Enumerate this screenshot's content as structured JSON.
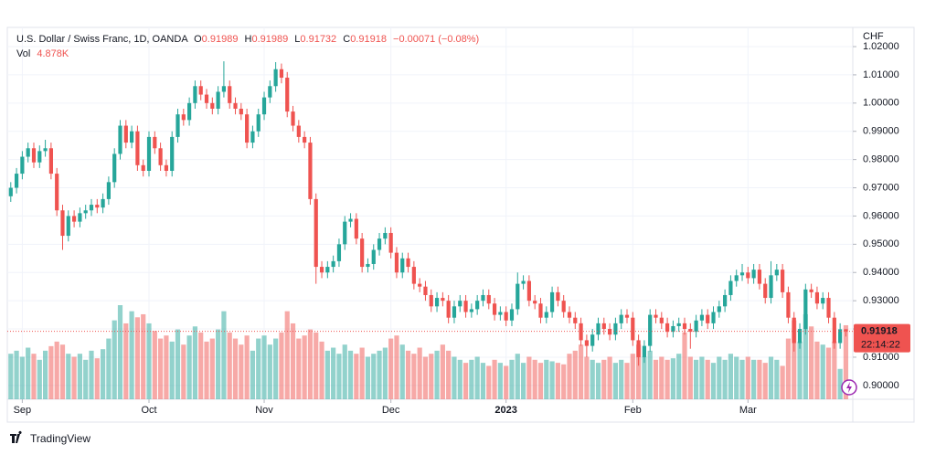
{
  "chart_data": {
    "type": "candlestick",
    "symbol": "U.S. Dollar / Swiss Franc, 1D, OANDA",
    "ohlc_keys": [
      "O",
      "H",
      "L",
      "C"
    ],
    "change": "−0.00071 (−0.08%)",
    "volume_title": "Vol",
    "volume_legend": "4.878K",
    "currency": "CHF",
    "countdown": "22:14:22",
    "brand": "TradingView",
    "up_color": "#26a69a",
    "down_color": "#ef5350",
    "grid": true,
    "ylim": [
      0.8951,
      1.0268
    ],
    "yticks": [
      {
        "value": 0.9,
        "label": "0.90000"
      },
      {
        "value": 0.91,
        "label": "0.91000"
      },
      {
        "value": 0.92,
        "label": "0.92000"
      },
      {
        "value": 0.93,
        "label": "0.93000"
      },
      {
        "value": 0.94,
        "label": "0.94000"
      },
      {
        "value": 0.95,
        "label": "0.95000"
      },
      {
        "value": 0.96,
        "label": "0.96000"
      },
      {
        "value": 0.97,
        "label": "0.97000"
      },
      {
        "value": 0.98,
        "label": "0.98000"
      },
      {
        "value": 0.99,
        "label": "0.99000"
      },
      {
        "value": 1.0,
        "label": "1.00000"
      },
      {
        "value": 1.01,
        "label": "1.01000"
      },
      {
        "value": 1.02,
        "label": "1.02000"
      }
    ],
    "xlim": [
      -0.6,
      146.2
    ],
    "xticks": [
      {
        "value": 2,
        "label": "Sep"
      },
      {
        "value": 24,
        "label": "Oct"
      },
      {
        "value": 44,
        "label": "Nov"
      },
      {
        "value": 66,
        "label": "Dec"
      },
      {
        "value": 86,
        "label": "2023",
        "bold": true
      },
      {
        "value": 108,
        "label": "Feb"
      },
      {
        "value": 128,
        "label": "Mar"
      }
    ],
    "volume_lim": [
      0,
      24.5
    ],
    "candles": [
      [
        0.967,
        0.972,
        0.965,
        0.97
      ],
      [
        0.97,
        0.977,
        0.968,
        0.975
      ],
      [
        0.975,
        0.983,
        0.973,
        0.981
      ],
      [
        0.981,
        0.986,
        0.979,
        0.984
      ],
      [
        0.984,
        0.986,
        0.977,
        0.979
      ],
      [
        0.979,
        0.985,
        0.977,
        0.983
      ],
      [
        0.983,
        0.987,
        0.981,
        0.984
      ],
      [
        0.984,
        0.986,
        0.973,
        0.975
      ],
      [
        0.975,
        0.977,
        0.96,
        0.962
      ],
      [
        0.962,
        0.964,
        0.948,
        0.953
      ],
      [
        0.953,
        0.962,
        0.951,
        0.96
      ],
      [
        0.96,
        0.962,
        0.956,
        0.958
      ],
      [
        0.958,
        0.963,
        0.956,
        0.961
      ],
      [
        0.961,
        0.964,
        0.959,
        0.962
      ],
      [
        0.962,
        0.966,
        0.96,
        0.964
      ],
      [
        0.964,
        0.966,
        0.961,
        0.963
      ],
      [
        0.963,
        0.968,
        0.961,
        0.966
      ],
      [
        0.966,
        0.974,
        0.964,
        0.972
      ],
      [
        0.972,
        0.984,
        0.97,
        0.982
      ],
      [
        0.982,
        0.994,
        0.98,
        0.992
      ],
      [
        0.992,
        0.994,
        0.984,
        0.986
      ],
      [
        0.986,
        0.992,
        0.984,
        0.99
      ],
      [
        0.99,
        0.992,
        0.976,
        0.978
      ],
      [
        0.978,
        0.98,
        0.974,
        0.976
      ],
      [
        0.976,
        0.99,
        0.974,
        0.988
      ],
      [
        0.988,
        0.99,
        0.982,
        0.984
      ],
      [
        0.984,
        0.986,
        0.976,
        0.978
      ],
      [
        0.978,
        0.98,
        0.974,
        0.976
      ],
      [
        0.976,
        0.99,
        0.974,
        0.988
      ],
      [
        0.988,
        0.998,
        0.986,
        0.996
      ],
      [
        0.996,
        0.998,
        0.992,
        0.994
      ],
      [
        0.994,
        1.002,
        0.992,
        1.0
      ],
      [
        1.0,
        1.008,
        0.998,
        1.006
      ],
      [
        1.006,
        1.008,
        1.001,
        1.003
      ],
      [
        1.003,
        1.005,
        0.998,
        1.0
      ],
      [
        1.0,
        1.002,
        0.996,
        0.998
      ],
      [
        0.998,
        1.006,
        0.996,
        1.004
      ],
      [
        1.004,
        1.0148,
        1.002,
        1.006
      ],
      [
        1.006,
        1.008,
        0.998,
        1.0
      ],
      [
        1.0,
        1.002,
        0.996,
        0.998
      ],
      [
        0.998,
        1.0,
        0.994,
        0.996
      ],
      [
        0.996,
        0.998,
        0.984,
        0.986
      ],
      [
        0.986,
        0.992,
        0.984,
        0.99
      ],
      [
        0.99,
        0.998,
        0.988,
        0.996
      ],
      [
        0.996,
        1.004,
        0.994,
        1.002
      ],
      [
        1.002,
        1.008,
        1.0,
        1.006
      ],
      [
        1.006,
        1.0145,
        1.004,
        1.012
      ],
      [
        1.012,
        1.014,
        1.007,
        1.009
      ],
      [
        1.009,
        1.011,
        0.995,
        0.997
      ],
      [
        0.997,
        0.999,
        0.99,
        0.992
      ],
      [
        0.992,
        0.994,
        0.986,
        0.988
      ],
      [
        0.988,
        0.99,
        0.984,
        0.986
      ],
      [
        0.986,
        0.988,
        0.964,
        0.966
      ],
      [
        0.966,
        0.968,
        0.936,
        0.942
      ],
      [
        0.942,
        0.944,
        0.938,
        0.94
      ],
      [
        0.94,
        0.944,
        0.938,
        0.942
      ],
      [
        0.942,
        0.946,
        0.94,
        0.944
      ],
      [
        0.944,
        0.952,
        0.942,
        0.95
      ],
      [
        0.95,
        0.96,
        0.948,
        0.958
      ],
      [
        0.958,
        0.961,
        0.956,
        0.959
      ],
      [
        0.959,
        0.961,
        0.95,
        0.952
      ],
      [
        0.952,
        0.954,
        0.94,
        0.942
      ],
      [
        0.942,
        0.945,
        0.94,
        0.943
      ],
      [
        0.943,
        0.95,
        0.941,
        0.948
      ],
      [
        0.948,
        0.954,
        0.946,
        0.952
      ],
      [
        0.952,
        0.956,
        0.95,
        0.954
      ],
      [
        0.954,
        0.956,
        0.945,
        0.947
      ],
      [
        0.947,
        0.949,
        0.938,
        0.94
      ],
      [
        0.94,
        0.947,
        0.938,
        0.945
      ],
      [
        0.945,
        0.947,
        0.94,
        0.942
      ],
      [
        0.942,
        0.944,
        0.934,
        0.936
      ],
      [
        0.936,
        0.938,
        0.933,
        0.935
      ],
      [
        0.935,
        0.937,
        0.93,
        0.932
      ],
      [
        0.932,
        0.934,
        0.926,
        0.928
      ],
      [
        0.928,
        0.933,
        0.926,
        0.931
      ],
      [
        0.931,
        0.933,
        0.928,
        0.93
      ],
      [
        0.93,
        0.932,
        0.922,
        0.924
      ],
      [
        0.924,
        0.93,
        0.922,
        0.928
      ],
      [
        0.928,
        0.932,
        0.926,
        0.93
      ],
      [
        0.93,
        0.932,
        0.924,
        0.926
      ],
      [
        0.926,
        0.929,
        0.924,
        0.927
      ],
      [
        0.927,
        0.932,
        0.925,
        0.93
      ],
      [
        0.93,
        0.934,
        0.928,
        0.932
      ],
      [
        0.932,
        0.934,
        0.927,
        0.929
      ],
      [
        0.929,
        0.931,
        0.923,
        0.925
      ],
      [
        0.925,
        0.928,
        0.923,
        0.926
      ],
      [
        0.926,
        0.928,
        0.921,
        0.923
      ],
      [
        0.923,
        0.929,
        0.921,
        0.927
      ],
      [
        0.927,
        0.94,
        0.925,
        0.936
      ],
      [
        0.936,
        0.939,
        0.934,
        0.937
      ],
      [
        0.937,
        0.939,
        0.928,
        0.93
      ],
      [
        0.93,
        0.932,
        0.927,
        0.929
      ],
      [
        0.929,
        0.931,
        0.922,
        0.924
      ],
      [
        0.924,
        0.928,
        0.922,
        0.926
      ],
      [
        0.926,
        0.935,
        0.924,
        0.933
      ],
      [
        0.933,
        0.935,
        0.928,
        0.93
      ],
      [
        0.93,
        0.932,
        0.924,
        0.926
      ],
      [
        0.926,
        0.928,
        0.922,
        0.924
      ],
      [
        0.924,
        0.926,
        0.92,
        0.922
      ],
      [
        0.922,
        0.924,
        0.914,
        0.916
      ],
      [
        0.916,
        0.918,
        0.91,
        0.914
      ],
      [
        0.914,
        0.92,
        0.912,
        0.918
      ],
      [
        0.918,
        0.924,
        0.916,
        0.922
      ],
      [
        0.922,
        0.924,
        0.918,
        0.92
      ],
      [
        0.92,
        0.922,
        0.916,
        0.918
      ],
      [
        0.918,
        0.924,
        0.916,
        0.922
      ],
      [
        0.922,
        0.927,
        0.92,
        0.925
      ],
      [
        0.925,
        0.927,
        0.922,
        0.924
      ],
      [
        0.924,
        0.926,
        0.914,
        0.916
      ],
      [
        0.916,
        0.918,
        0.907,
        0.91
      ],
      [
        0.91,
        0.916,
        0.908,
        0.914
      ],
      [
        0.914,
        0.927,
        0.912,
        0.925
      ],
      [
        0.925,
        0.927,
        0.922,
        0.924
      ],
      [
        0.924,
        0.926,
        0.92,
        0.922
      ],
      [
        0.922,
        0.924,
        0.917,
        0.919
      ],
      [
        0.919,
        0.923,
        0.917,
        0.921
      ],
      [
        0.921,
        0.924,
        0.919,
        0.922
      ],
      [
        0.922,
        0.924,
        0.918,
        0.92
      ],
      [
        0.92,
        0.922,
        0.913,
        0.919
      ],
      [
        0.919,
        0.925,
        0.917,
        0.923
      ],
      [
        0.923,
        0.927,
        0.921,
        0.925
      ],
      [
        0.925,
        0.927,
        0.92,
        0.922
      ],
      [
        0.922,
        0.928,
        0.92,
        0.926
      ],
      [
        0.926,
        0.93,
        0.924,
        0.928
      ],
      [
        0.928,
        0.934,
        0.926,
        0.932
      ],
      [
        0.932,
        0.939,
        0.93,
        0.937
      ],
      [
        0.937,
        0.941,
        0.935,
        0.939
      ],
      [
        0.939,
        0.943,
        0.937,
        0.94
      ],
      [
        0.94,
        0.942,
        0.936,
        0.938
      ],
      [
        0.938,
        0.943,
        0.936,
        0.941
      ],
      [
        0.941,
        0.943,
        0.934,
        0.936
      ],
      [
        0.936,
        0.938,
        0.929,
        0.931
      ],
      [
        0.931,
        0.944,
        0.929,
        0.939
      ],
      [
        0.939,
        0.943,
        0.937,
        0.941
      ],
      [
        0.941,
        0.943,
        0.931,
        0.933
      ],
      [
        0.933,
        0.935,
        0.922,
        0.924
      ],
      [
        0.924,
        0.926,
        0.912,
        0.915
      ],
      [
        0.915,
        0.922,
        0.913,
        0.92
      ],
      [
        0.92,
        0.936,
        0.918,
        0.934
      ],
      [
        0.934,
        0.936,
        0.931,
        0.933
      ],
      [
        0.933,
        0.935,
        0.927,
        0.929
      ],
      [
        0.929,
        0.933,
        0.927,
        0.931
      ],
      [
        0.931,
        0.933,
        0.922,
        0.924
      ],
      [
        0.924,
        0.926,
        0.913,
        0.915
      ],
      [
        0.915,
        0.922,
        0.913,
        0.91989
      ],
      [
        0.91989,
        0.91989,
        0.91732,
        0.91918
      ]
    ],
    "volumes": [
      3.0,
      3.2,
      2.8,
      3.4,
      3.0,
      2.6,
      3.2,
      3.5,
      3.8,
      3.6,
      3.0,
      2.8,
      3.0,
      2.6,
      3.2,
      2.7,
      3.3,
      4.0,
      5.2,
      6.2,
      5.0,
      5.8,
      5.4,
      5.6,
      5.0,
      4.5,
      4.0,
      4.2,
      3.8,
      4.6,
      3.6,
      4.2,
      4.8,
      4.4,
      3.8,
      4.0,
      4.6,
      5.8,
      4.4,
      4.0,
      3.6,
      4.2,
      3.2,
      4.0,
      4.2,
      3.6,
      4.0,
      4.4,
      5.8,
      5.0,
      4.0,
      4.2,
      4.6,
      4.4,
      3.8,
      3.2,
      3.4,
      3.0,
      3.6,
      3.2,
      3.0,
      3.4,
      2.8,
      3.0,
      3.2,
      3.4,
      4.0,
      4.2,
      3.6,
      3.2,
      3.0,
      3.4,
      2.8,
      3.0,
      3.2,
      3.6,
      3.2,
      2.8,
      2.6,
      2.4,
      2.6,
      2.8,
      2.4,
      2.2,
      2.6,
      2.4,
      2.2,
      2.6,
      3.0,
      2.4,
      2.8,
      2.6,
      2.4,
      2.6,
      2.5,
      2.4,
      2.3,
      3.0,
      3.2,
      3.6,
      2.8,
      2.6,
      2.4,
      2.6,
      2.8,
      2.4,
      2.6,
      2.4,
      3.0,
      3.6,
      2.8,
      3.2,
      2.6,
      2.8,
      2.6,
      2.7,
      3.0,
      4.4,
      2.8,
      2.6,
      2.8,
      2.6,
      2.4,
      2.8,
      2.6,
      3.0,
      2.8,
      2.6,
      2.8,
      2.6,
      2.6,
      2.4,
      2.8,
      2.6,
      2.2,
      4.0,
      5.2,
      3.8,
      5.6,
      4.8,
      3.8,
      3.6,
      3.4,
      3.8,
      2.0,
      4.878
    ]
  }
}
